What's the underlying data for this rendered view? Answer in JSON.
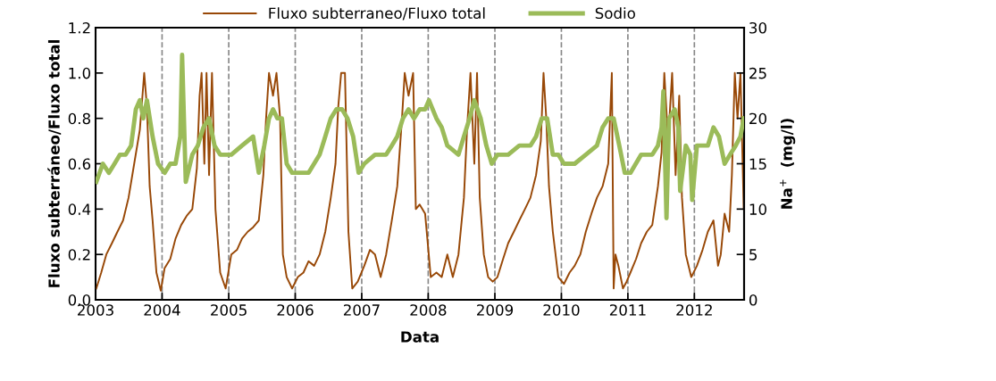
{
  "chart_data": {
    "type": "line",
    "xlabel": "Data",
    "ylabel": "Fluxo subterráneo/Fluxo total",
    "y2label": "Na$^{+}$  (mg/l)",
    "xlim": [
      "2003-01-01",
      "2012-09-30"
    ],
    "xticks": [
      {
        "value": "2003-01-01",
        "label": "2003"
      },
      {
        "value": "2004-01-01",
        "label": "2004"
      },
      {
        "value": "2005-01-01",
        "label": "2005"
      },
      {
        "value": "2006-01-01",
        "label": "2006"
      },
      {
        "value": "2007-01-01",
        "label": "2007"
      },
      {
        "value": "2008-01-01",
        "label": "2008"
      },
      {
        "value": "2009-01-01",
        "label": "2009"
      },
      {
        "value": "2010-01-01",
        "label": "2010"
      },
      {
        "value": "2011-01-01",
        "label": "2011"
      },
      {
        "value": "2012-01-01",
        "label": "2012"
      }
    ],
    "ylim": [
      0,
      1.2
    ],
    "yticks": [
      {
        "value": 0,
        "label": "0.0"
      },
      {
        "value": 0.2,
        "label": "0.2"
      },
      {
        "value": 0.4,
        "label": "0.4"
      },
      {
        "value": 0.6,
        "label": "0.6"
      },
      {
        "value": 0.8,
        "label": "0.8"
      },
      {
        "value": 1.0,
        "label": "1.0"
      },
      {
        "value": 1.2,
        "label": "1.2"
      }
    ],
    "y2lim": [
      0,
      30
    ],
    "y2ticks": [
      0,
      5,
      10,
      15,
      20,
      25,
      30
    ],
    "grid": "x",
    "legend": "top",
    "marker": "none",
    "line_style": "solid",
    "series": [
      {
        "name": "Fluxo subterraneo/Fluxo total",
        "color": "#984807",
        "x": [
          "2003-01-05",
          "2003-02-01",
          "2003-03-01",
          "2003-04-01",
          "2003-05-01",
          "2003-06-01",
          "2003-07-01",
          "2003-08-01",
          "2003-09-01",
          "2003-09-25",
          "2003-10-10",
          "2003-10-25",
          "2003-11-10",
          "2003-12-01",
          "2003-12-25",
          "2004-01-15",
          "2004-02-15",
          "2004-03-15",
          "2004-04-15",
          "2004-05-15",
          "2004-06-15",
          "2004-07-10",
          "2004-07-25",
          "2004-08-05",
          "2004-08-20",
          "2004-09-01",
          "2004-09-15",
          "2004-10-01",
          "2004-10-20",
          "2004-11-15",
          "2004-12-15",
          "2005-01-15",
          "2005-02-15",
          "2005-03-15",
          "2005-04-15",
          "2005-05-15",
          "2005-06-15",
          "2005-07-10",
          "2005-07-25",
          "2005-08-10",
          "2005-09-01",
          "2005-09-20",
          "2005-10-10",
          "2005-10-25",
          "2005-11-15",
          "2005-12-15",
          "2006-01-15",
          "2006-02-15",
          "2006-03-15",
          "2006-04-15",
          "2006-05-15",
          "2006-06-15",
          "2006-07-15",
          "2006-08-10",
          "2006-08-25",
          "2006-09-10",
          "2006-10-01",
          "2006-10-20",
          "2006-11-10",
          "2006-12-10",
          "2007-01-15",
          "2007-02-15",
          "2007-03-15",
          "2007-04-15",
          "2007-05-15",
          "2007-06-15",
          "2007-07-15",
          "2007-08-10",
          "2007-08-25",
          "2007-09-15",
          "2007-10-10",
          "2007-10-25",
          "2007-11-15",
          "2007-12-15",
          "2008-01-15",
          "2008-02-15",
          "2008-03-15",
          "2008-04-15",
          "2008-05-15",
          "2008-06-15",
          "2008-07-15",
          "2008-08-01",
          "2008-08-20",
          "2008-09-10",
          "2008-09-25",
          "2008-10-10",
          "2008-11-01",
          "2008-11-25",
          "2008-12-20",
          "2009-01-15",
          "2009-02-15",
          "2009-03-15",
          "2009-04-15",
          "2009-05-15",
          "2009-06-15",
          "2009-07-15",
          "2009-08-15",
          "2009-09-10",
          "2009-09-25",
          "2009-10-10",
          "2009-10-25",
          "2009-11-15",
          "2009-12-15",
          "2010-01-15",
          "2010-02-15",
          "2010-03-15",
          "2010-04-15",
          "2010-05-15",
          "2010-06-15",
          "2010-07-15",
          "2010-08-15",
          "2010-09-15",
          "2010-10-05",
          "2010-10-15",
          "2010-10-25",
          "2010-11-10",
          "2010-12-05",
          "2010-12-25",
          "2011-01-15",
          "2011-02-15",
          "2011-03-15",
          "2011-04-15",
          "2011-05-15",
          "2011-06-15",
          "2011-07-05",
          "2011-07-20",
          "2011-08-10",
          "2011-09-01",
          "2011-09-20",
          "2011-10-10",
          "2011-10-25",
          "2011-11-15",
          "2011-12-15",
          "2012-01-15",
          "2012-02-15",
          "2012-03-15",
          "2012-04-15",
          "2012-05-10",
          "2012-05-25",
          "2012-06-15",
          "2012-07-10",
          "2012-07-25",
          "2012-08-10",
          "2012-08-25",
          "2012-09-10",
          "2012-09-28"
        ],
        "values": [
          0.05,
          0.12,
          0.2,
          0.25,
          0.3,
          0.35,
          0.45,
          0.6,
          0.75,
          1.0,
          0.85,
          0.5,
          0.35,
          0.12,
          0.04,
          0.14,
          0.18,
          0.27,
          0.33,
          0.37,
          0.4,
          0.58,
          0.9,
          1.0,
          0.6,
          1.0,
          0.55,
          1.0,
          0.4,
          0.12,
          0.05,
          0.2,
          0.22,
          0.27,
          0.3,
          0.32,
          0.35,
          0.55,
          0.8,
          1.0,
          0.9,
          1.0,
          0.8,
          0.2,
          0.1,
          0.05,
          0.1,
          0.12,
          0.17,
          0.15,
          0.2,
          0.3,
          0.45,
          0.6,
          0.85,
          1.0,
          1.0,
          0.3,
          0.05,
          0.08,
          0.15,
          0.22,
          0.2,
          0.1,
          0.2,
          0.35,
          0.5,
          0.8,
          1.0,
          0.9,
          1.0,
          0.4,
          0.42,
          0.38,
          0.1,
          0.12,
          0.1,
          0.2,
          0.1,
          0.2,
          0.45,
          0.75,
          1.0,
          0.6,
          1.0,
          0.45,
          0.2,
          0.1,
          0.08,
          0.1,
          0.18,
          0.25,
          0.3,
          0.35,
          0.4,
          0.45,
          0.55,
          0.7,
          1.0,
          0.8,
          0.5,
          0.3,
          0.1,
          0.07,
          0.12,
          0.15,
          0.2,
          0.3,
          0.38,
          0.45,
          0.5,
          0.6,
          1.0,
          0.05,
          0.2,
          0.15,
          0.05,
          0.08,
          0.12,
          0.18,
          0.25,
          0.3,
          0.33,
          0.5,
          0.65,
          1.0,
          0.7,
          1.0,
          0.55,
          0.9,
          0.45,
          0.2,
          0.1,
          0.15,
          0.22,
          0.3,
          0.35,
          0.15,
          0.2,
          0.38,
          0.3,
          0.55,
          1.0,
          0.8,
          1.0,
          0.4
        ]
      },
      {
        "name": "Sodio",
        "color": "#9bbb59",
        "axis": "y2",
        "x": [
          "2003-01-05",
          "2003-02-10",
          "2003-03-15",
          "2003-04-15",
          "2003-05-15",
          "2003-06-15",
          "2003-07-15",
          "2003-08-10",
          "2003-09-01",
          "2003-09-20",
          "2003-10-10",
          "2003-11-10",
          "2003-12-10",
          "2004-01-15",
          "2004-02-15",
          "2004-03-15",
          "2004-04-10",
          "2004-04-20",
          "2004-05-10",
          "2004-06-15",
          "2004-07-15",
          "2004-08-15",
          "2004-09-15",
          "2004-10-15",
          "2004-11-15",
          "2004-12-15",
          "2005-01-15",
          "2005-03-15",
          "2005-05-15",
          "2005-06-15",
          "2005-07-15",
          "2005-08-10",
          "2005-09-01",
          "2005-09-25",
          "2005-10-20",
          "2005-11-15",
          "2005-12-15",
          "2006-01-15",
          "2006-03-15",
          "2006-05-15",
          "2006-06-15",
          "2006-07-15",
          "2006-08-15",
          "2006-09-15",
          "2006-10-15",
          "2006-11-15",
          "2006-12-15",
          "2007-01-15",
          "2007-03-15",
          "2007-05-15",
          "2007-06-15",
          "2007-07-15",
          "2007-08-15",
          "2007-09-15",
          "2007-10-15",
          "2007-11-15",
          "2007-12-15",
          "2008-01-05",
          "2008-02-15",
          "2008-03-15",
          "2008-04-15",
          "2008-06-15",
          "2008-07-15",
          "2008-08-15",
          "2008-09-10",
          "2008-10-15",
          "2008-11-15",
          "2008-12-15",
          "2009-01-15",
          "2009-03-15",
          "2009-05-15",
          "2009-07-15",
          "2009-08-15",
          "2009-09-15",
          "2009-10-15",
          "2009-11-15",
          "2009-12-15",
          "2010-01-15",
          "2010-03-15",
          "2010-05-15",
          "2010-07-15",
          "2010-08-15",
          "2010-09-15",
          "2010-10-15",
          "2010-11-15",
          "2010-12-15",
          "2011-01-15",
          "2011-03-15",
          "2011-05-15",
          "2011-06-15",
          "2011-07-05",
          "2011-07-15",
          "2011-08-01",
          "2011-08-15",
          "2011-09-15",
          "2011-10-05",
          "2011-10-15",
          "2011-11-15",
          "2011-12-10",
          "2011-12-20",
          "2012-01-15",
          "2012-03-15",
          "2012-04-15",
          "2012-05-15",
          "2012-06-15",
          "2012-07-15",
          "2012-08-15",
          "2012-09-10",
          "2012-09-28"
        ],
        "values": [
          13,
          15,
          14,
          15,
          16,
          16,
          17,
          21,
          22,
          20,
          22,
          18,
          15,
          14,
          15,
          15,
          18,
          27,
          13,
          16,
          17,
          19,
          20,
          17,
          16,
          16,
          16,
          17,
          18,
          14,
          17,
          20,
          21,
          20,
          20,
          15,
          14,
          14,
          14,
          16,
          18,
          20,
          21,
          21,
          20,
          18,
          14,
          15,
          16,
          16,
          17,
          18,
          20,
          21,
          20,
          21,
          21,
          22,
          20,
          19,
          17,
          16,
          18,
          20,
          22,
          20,
          17,
          15,
          16,
          16,
          17,
          17,
          18,
          20,
          20,
          16,
          16,
          15,
          15,
          16,
          17,
          19,
          20,
          20,
          17,
          14,
          14,
          16,
          16,
          17,
          19,
          23,
          9,
          20,
          21,
          19,
          12,
          17,
          16,
          11,
          17,
          17,
          19,
          18,
          15,
          16,
          17,
          18,
          20
        ]
      }
    ]
  }
}
